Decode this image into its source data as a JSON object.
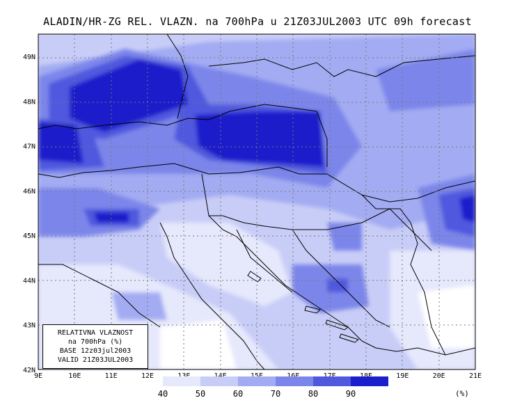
{
  "title": "ALADIN/HR-ZG REL. VLAZN. na 700hPa u 21Z03JUL2003 UTC 09h forecast",
  "info_box": {
    "line1": "RELATIVNA VLAZNOST",
    "line2": "na 700hPa (%)",
    "line3": "BASE 12z03jul2003",
    "line4": "VALID 21Z03JUL2003"
  },
  "axes": {
    "x_ticks": [
      "9E",
      "10E",
      "11E",
      "12E",
      "13E",
      "14E",
      "15E",
      "16E",
      "17E",
      "18E",
      "19E",
      "20E",
      "21E"
    ],
    "y_ticks": [
      "42N",
      "43N",
      "44N",
      "45N",
      "46N",
      "47N",
      "48N",
      "49N"
    ],
    "lon_range": [
      9,
      21
    ],
    "lat_range": [
      42,
      49.5
    ]
  },
  "colorbar": {
    "levels": [
      "40",
      "50",
      "60",
      "70",
      "80",
      "90"
    ],
    "colors": [
      "#e6e8fc",
      "#c8cdf7",
      "#a3acf2",
      "#7c86ea",
      "#5058de",
      "#1b1ecb"
    ],
    "unit": "(%)"
  },
  "colors": {
    "background_field": "#ffffff",
    "border_line": "#000000",
    "grid": "#777777"
  }
}
